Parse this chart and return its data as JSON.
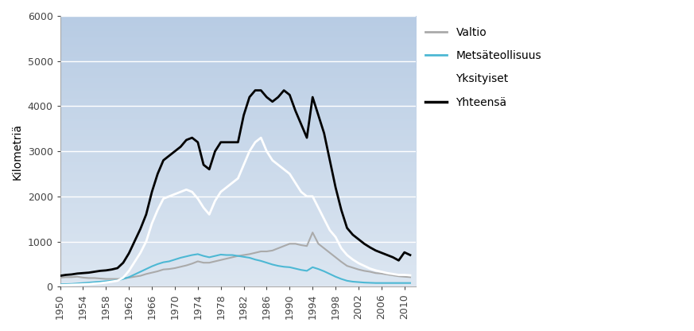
{
  "title": "",
  "ylabel": "Kilometriä",
  "xlabel": "",
  "xlim": [
    1950,
    2012
  ],
  "ylim": [
    0,
    6000
  ],
  "yticks": [
    0,
    1000,
    2000,
    3000,
    4000,
    5000,
    6000
  ],
  "xtick_years": [
    1950,
    1954,
    1958,
    1962,
    1966,
    1970,
    1974,
    1978,
    1982,
    1986,
    1990,
    1994,
    1998,
    2002,
    2006,
    2010
  ],
  "bg_top": "#dce6f1",
  "bg_bottom": "#b8cce4",
  "legend_labels": [
    "Valtio",
    "Metsäteollisuus",
    "Yksityiset",
    "Yhteensä"
  ],
  "legend_colors": [
    "#aaaaaa",
    "#4db8d4",
    "#ffffff",
    "#000000"
  ],
  "series": {
    "years": [
      1950,
      1951,
      1952,
      1953,
      1954,
      1955,
      1956,
      1957,
      1958,
      1959,
      1960,
      1961,
      1962,
      1963,
      1964,
      1965,
      1966,
      1967,
      1968,
      1969,
      1970,
      1971,
      1972,
      1973,
      1974,
      1975,
      1976,
      1977,
      1978,
      1979,
      1980,
      1981,
      1982,
      1983,
      1984,
      1985,
      1986,
      1987,
      1988,
      1989,
      1990,
      1991,
      1992,
      1993,
      1994,
      1995,
      1996,
      1997,
      1998,
      1999,
      2000,
      2001,
      2002,
      2003,
      2004,
      2005,
      2006,
      2007,
      2008,
      2009,
      2010,
      2011
    ],
    "valtio": [
      200,
      210,
      210,
      220,
      200,
      190,
      190,
      180,
      170,
      170,
      170,
      180,
      200,
      220,
      240,
      280,
      310,
      340,
      380,
      390,
      410,
      440,
      470,
      510,
      560,
      530,
      530,
      560,
      590,
      620,
      650,
      680,
      700,
      720,
      750,
      780,
      780,
      800,
      850,
      900,
      950,
      950,
      920,
      900,
      1200,
      950,
      850,
      750,
      650,
      550,
      460,
      420,
      380,
      350,
      330,
      300,
      290,
      270,
      250,
      230,
      220,
      210
    ],
    "metsateollisuus": [
      50,
      55,
      60,
      70,
      80,
      90,
      100,
      110,
      120,
      130,
      140,
      170,
      210,
      270,
      330,
      390,
      450,
      500,
      540,
      560,
      600,
      640,
      670,
      700,
      720,
      680,
      650,
      680,
      710,
      700,
      700,
      680,
      660,
      640,
      600,
      570,
      530,
      490,
      460,
      440,
      430,
      400,
      370,
      350,
      430,
      390,
      340,
      280,
      220,
      170,
      130,
      110,
      100,
      90,
      85,
      80,
      80,
      80,
      80,
      80,
      80,
      80
    ],
    "yksityiset": [
      30,
      35,
      40,
      45,
      50,
      55,
      65,
      75,
      90,
      110,
      130,
      200,
      350,
      550,
      750,
      1000,
      1400,
      1700,
      1950,
      2000,
      2050,
      2100,
      2150,
      2100,
      1950,
      1750,
      1600,
      1900,
      2100,
      2200,
      2300,
      2400,
      2700,
      3000,
      3200,
      3300,
      3000,
      2800,
      2700,
      2600,
      2500,
      2300,
      2100,
      2000,
      2000,
      1750,
      1500,
      1250,
      1100,
      850,
      700,
      600,
      520,
      460,
      400,
      360,
      330,
      300,
      280,
      260,
      260,
      250
    ],
    "yhteensa": [
      240,
      260,
      270,
      290,
      300,
      310,
      330,
      350,
      360,
      380,
      410,
      530,
      740,
      1010,
      1280,
      1600,
      2100,
      2500,
      2800,
      2900,
      3000,
      3100,
      3250,
      3300,
      3200,
      2700,
      2600,
      3000,
      3200,
      3200,
      3200,
      3200,
      3800,
      4200,
      4350,
      4350,
      4200,
      4100,
      4200,
      4350,
      4250,
      3900,
      3600,
      3300,
      4200,
      3800,
      3400,
      2800,
      2200,
      1700,
      1300,
      1150,
      1050,
      950,
      870,
      800,
      750,
      700,
      650,
      580,
      760,
      700
    ]
  }
}
